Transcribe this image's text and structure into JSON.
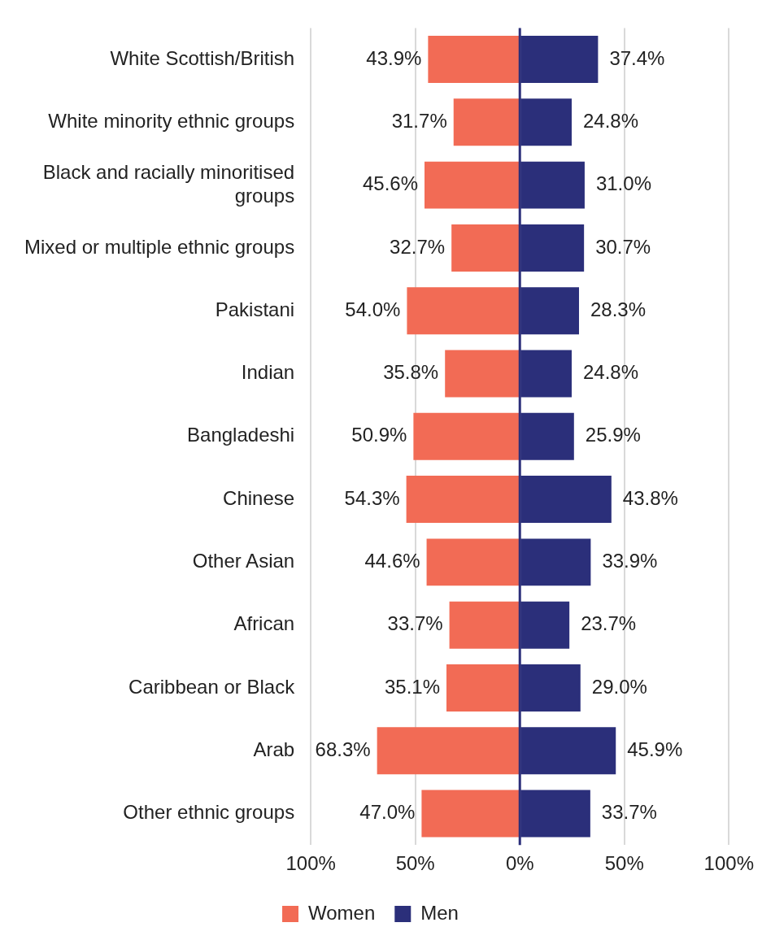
{
  "chart_data": {
    "type": "bar",
    "orientation": "horizontal",
    "categories": [
      "White Scottish/British",
      "White minority ethnic groups",
      "Black and racially minoritised groups",
      "Mixed or multiple ethnic groups",
      "Pakistani",
      "Indian",
      "Bangladeshi",
      "Chinese",
      "Other Asian",
      "African",
      "Caribbean or Black",
      "Arab",
      "Other ethnic groups"
    ],
    "series": [
      {
        "name": "Women",
        "color": "#f26b55",
        "values": [
          43.9,
          31.7,
          45.6,
          32.7,
          54.0,
          35.8,
          50.9,
          54.3,
          44.6,
          33.7,
          35.1,
          68.3,
          47.0
        ],
        "base": [
          -43.9,
          -31.7,
          -45.6,
          -32.7,
          -54.0,
          -35.8,
          -50.9,
          -54.3,
          -44.6,
          -33.7,
          -35.1,
          -68.3,
          -47.0
        ],
        "value_labels": [
          "43.9%",
          "31.7%",
          "45.6%",
          "32.7%",
          "54.0%",
          "35.8%",
          "50.9%",
          "54.3%",
          "44.6%",
          "33.7%",
          "35.1%",
          "68.3%",
          "47.0%"
        ]
      },
      {
        "name": "Men",
        "color": "#2b2f7a",
        "values": [
          37.4,
          24.8,
          31.0,
          30.7,
          28.3,
          24.8,
          25.9,
          43.8,
          33.9,
          23.7,
          29.0,
          45.9,
          33.7
        ],
        "value_labels": [
          "37.4%",
          "24.8%",
          "31.0%",
          "30.7%",
          "28.3%",
          "24.8%",
          "25.9%",
          "43.8%",
          "33.9%",
          "23.7%",
          "29.0%",
          "45.9%",
          "33.7%"
        ]
      }
    ],
    "xlim": [
      -100,
      100
    ],
    "xticks": [
      {
        "value": -100,
        "label": "100%"
      },
      {
        "value": -50,
        "label": "50%"
      },
      {
        "value": 0,
        "label": "0%"
      },
      {
        "value": 50,
        "label": "50%"
      },
      {
        "value": 100,
        "label": "100%"
      }
    ],
    "ref_lines": [
      {
        "axis": "x",
        "value": 0,
        "color": "#2b2f7a"
      }
    ],
    "grid": "x",
    "legend": "bottom"
  }
}
